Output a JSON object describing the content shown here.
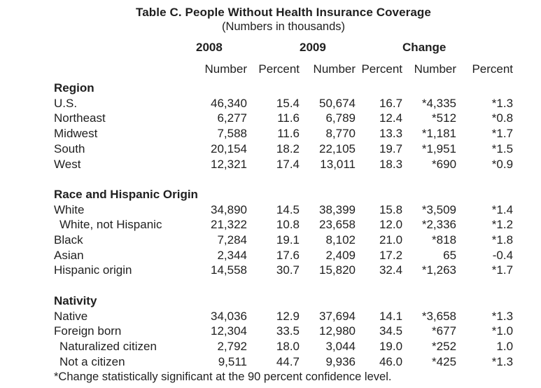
{
  "table": {
    "title": "Table C. People Without Health Insurance Coverage",
    "subtitle": "(Numbers in thousands)",
    "column_groups": [
      {
        "label": "2008"
      },
      {
        "label": "2009"
      },
      {
        "label": "Change"
      }
    ],
    "sub_headers": [
      "Number",
      "Percent",
      "Number",
      "Percent",
      "Number",
      "Percent"
    ],
    "sections": [
      {
        "header": "Region",
        "rows": [
          {
            "label": "U.S.",
            "indent": false,
            "values": [
              "46,340",
              "15.4",
              "50,674",
              "16.7",
              "*4,335",
              "*1.3"
            ]
          },
          {
            "label": "Northeast",
            "indent": false,
            "values": [
              "6,277",
              "11.6",
              "6,789",
              "12.4",
              "*512",
              "*0.8"
            ]
          },
          {
            "label": "Midwest",
            "indent": false,
            "values": [
              "7,588",
              "11.6",
              "8,770",
              "13.3",
              "*1,181",
              "*1.7"
            ]
          },
          {
            "label": "South",
            "indent": false,
            "values": [
              "20,154",
              "18.2",
              "22,105",
              "19.7",
              "*1,951",
              "*1.5"
            ]
          },
          {
            "label": "West",
            "indent": false,
            "values": [
              "12,321",
              "17.4",
              "13,011",
              "18.3",
              "*690",
              "*0.9"
            ]
          }
        ]
      },
      {
        "header": "Race and Hispanic Origin",
        "rows": [
          {
            "label": "White",
            "indent": false,
            "values": [
              "34,890",
              "14.5",
              "38,399",
              "15.8",
              "*3,509",
              "*1.4"
            ]
          },
          {
            "label": "White, not Hispanic",
            "indent": true,
            "values": [
              "21,322",
              "10.8",
              "23,658",
              "12.0",
              "*2,336",
              "*1.2"
            ]
          },
          {
            "label": "Black",
            "indent": false,
            "values": [
              "7,284",
              "19.1",
              "8,102",
              "21.0",
              "*818",
              "*1.8"
            ]
          },
          {
            "label": "Asian",
            "indent": false,
            "values": [
              "2,344",
              "17.6",
              "2,409",
              "17.2",
              "65",
              "-0.4"
            ]
          },
          {
            "label": "Hispanic origin",
            "indent": false,
            "values": [
              "14,558",
              "30.7",
              "15,820",
              "32.4",
              "*1,263",
              "*1.7"
            ]
          }
        ]
      },
      {
        "header": "Nativity",
        "rows": [
          {
            "label": "Native",
            "indent": false,
            "values": [
              "34,036",
              "12.9",
              "37,694",
              "14.1",
              "*3,658",
              "*1.3"
            ]
          },
          {
            "label": "Foreign born",
            "indent": false,
            "values": [
              "12,304",
              "33.5",
              "12,980",
              "34.5",
              "*677",
              "*1.0"
            ]
          },
          {
            "label": "Naturalized citizen",
            "indent": true,
            "values": [
              "2,792",
              "18.0",
              "3,044",
              "19.0",
              "*252",
              "1.0"
            ]
          },
          {
            "label": "Not a citizen",
            "indent": true,
            "values": [
              "9,511",
              "44.7",
              "9,936",
              "46.0",
              "*425",
              "*1.3"
            ]
          }
        ]
      }
    ],
    "footnote": "*Change statistically significant at the 90 percent confidence level."
  },
  "colors": {
    "text": "#1f1f1f",
    "background": "#ffffff"
  }
}
